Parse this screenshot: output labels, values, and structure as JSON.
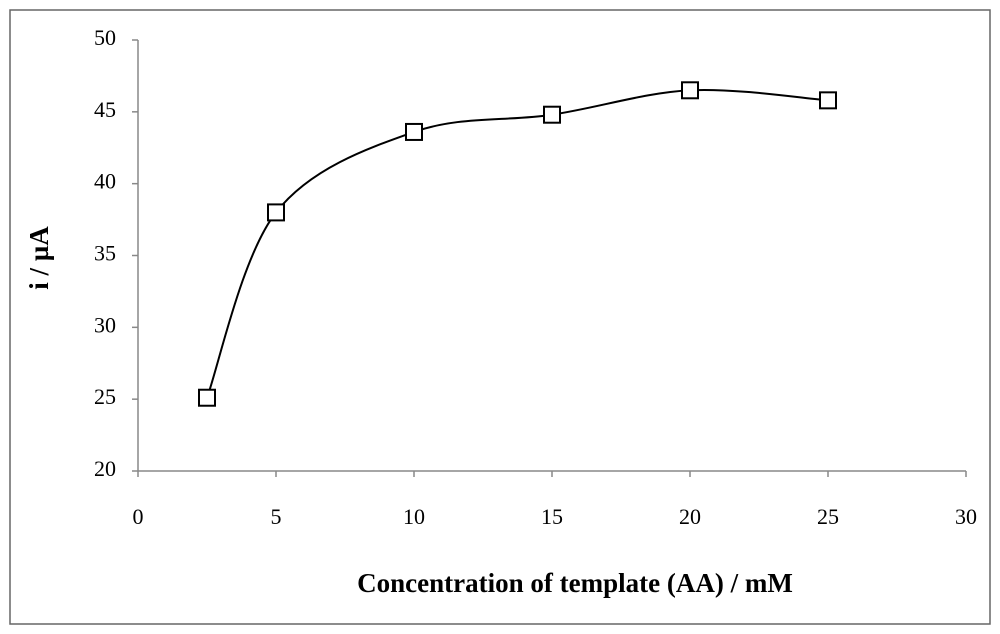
{
  "chart_data": {
    "type": "line",
    "x_label": "Concentration of template (AA) / mM",
    "y_label": "i / µA",
    "x": [
      2.5,
      5,
      10,
      15,
      20,
      25
    ],
    "series": [
      {
        "color": "#000000",
        "values": [
          25.1,
          38,
          43.6,
          44.8,
          46.5,
          45.8
        ]
      }
    ],
    "xlim": [
      0,
      30
    ],
    "xticks": [
      0,
      5,
      10,
      15,
      20,
      25,
      30
    ],
    "ylim": [
      20,
      50
    ],
    "yticks": [
      20,
      25,
      30,
      35,
      40,
      45,
      50
    ],
    "grid": false,
    "smooth": true,
    "marker": "square"
  }
}
